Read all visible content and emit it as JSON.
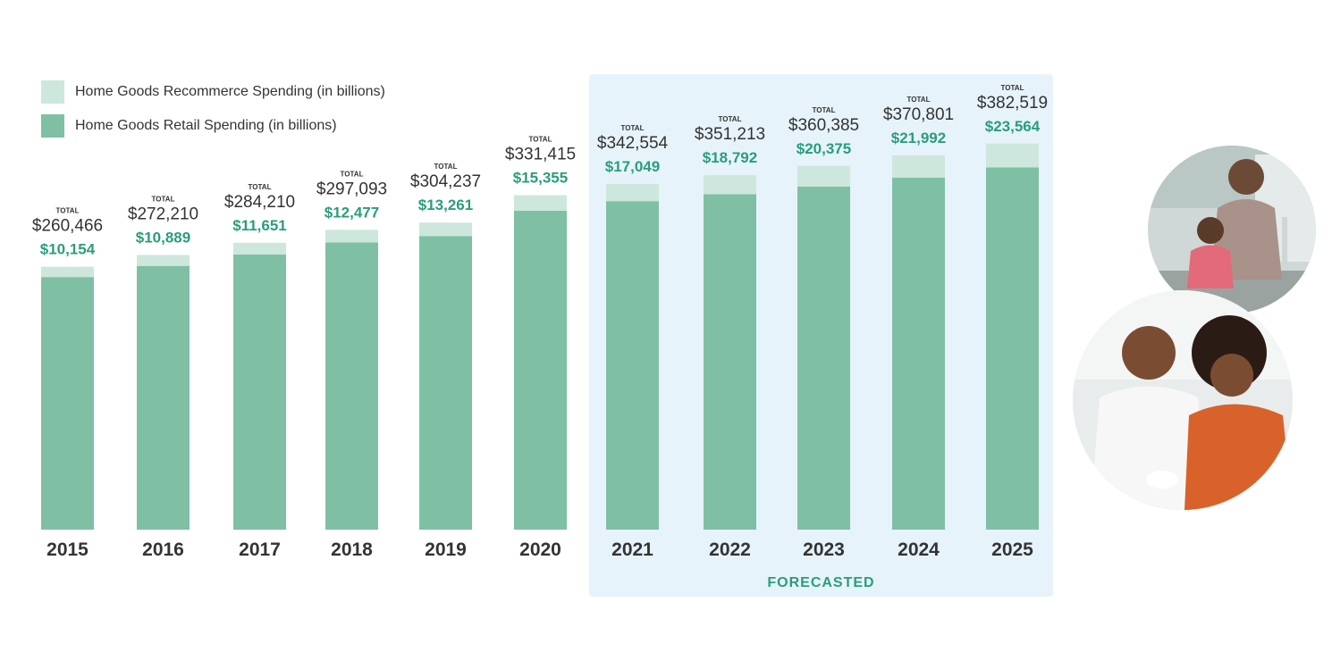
{
  "chart_data": {
    "type": "bar",
    "stacked": true,
    "categories": [
      "2015",
      "2016",
      "2017",
      "2018",
      "2019",
      "2020",
      "2021",
      "2022",
      "2023",
      "2024",
      "2025"
    ],
    "series": [
      {
        "name": "Home Goods Retail Spending (in billions)",
        "values": [
          250312,
          261321,
          272559,
          284616,
          290976,
          316060,
          325505,
          332421,
          340010,
          348809,
          358955
        ],
        "color": "#7fc0a5"
      },
      {
        "name": "Home Goods Recommerce Spending (in billions)",
        "values": [
          10154,
          10889,
          11651,
          12477,
          13261,
          15355,
          17049,
          18792,
          20375,
          21992,
          23564
        ],
        "color": "#cde7dc"
      }
    ],
    "totals": [
      260466,
      272210,
      284210,
      297093,
      304237,
      331415,
      342554,
      351213,
      360385,
      370801,
      382519
    ],
    "total_labels": [
      "$260,466",
      "$272,210",
      "$284,210",
      "$297,093",
      "$304,237",
      "$331,415",
      "$342,554",
      "$351,213",
      "$360,385",
      "$370,801",
      "$382,519"
    ],
    "recommerce_labels": [
      "$10,154",
      "$10,889",
      "$11,651",
      "$12,477",
      "$13,261",
      "$15,355",
      "$17,049",
      "$18,792",
      "$20,375",
      "$21,992",
      "$23,564"
    ],
    "total_caption": "TOTAL",
    "forecast_label": "FORECASTED",
    "forecast_start_index": 6,
    "ylim": [
      0,
      400000
    ],
    "legend_position": "top-left",
    "grid": false
  },
  "legend": {
    "recommerce": "Home Goods Recommerce Spending (in billions)",
    "retail": "Home Goods Retail Spending (in billions)"
  },
  "colors": {
    "retail": "#7fc0a5",
    "recommerce": "#cde7dc",
    "forecast_bg": "#e6f3fb",
    "accent_text": "#2a9d7c",
    "dark_text": "#333333"
  }
}
